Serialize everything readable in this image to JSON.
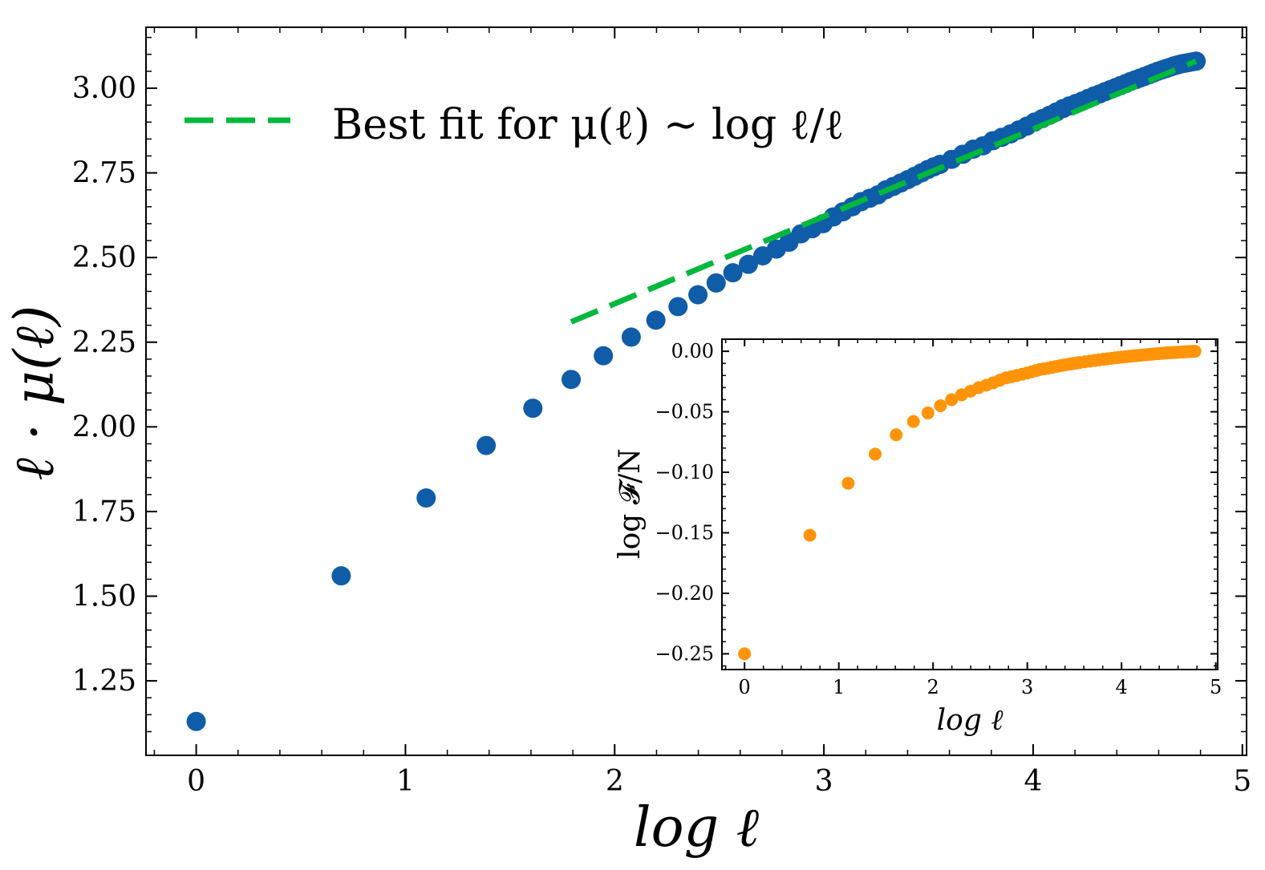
{
  "chart_data": [
    {
      "name": "main",
      "type": "scatter",
      "title": "",
      "xlabel": "log ℓ",
      "ylabel": "ℓ · μ(ℓ)",
      "xlim": [
        -0.24,
        5.02
      ],
      "ylim": [
        1.03,
        3.18
      ],
      "xticks": [
        0,
        1,
        2,
        3,
        4,
        5
      ],
      "xtick_labels": [
        "0",
        "1",
        "2",
        "3",
        "4",
        "5"
      ],
      "yticks": [
        1.25,
        1.5,
        1.75,
        2.0,
        2.25,
        2.5,
        2.75,
        3.0
      ],
      "ytick_labels": [
        "1.25",
        "1.50",
        "1.75",
        "2.00",
        "2.25",
        "2.50",
        "2.75",
        "3.00"
      ],
      "grid": false,
      "legend": {
        "position": "top-left",
        "entries": [
          "Best fit for μ(ℓ) ∼ log ℓ/ℓ"
        ]
      },
      "series": [
        {
          "name": "data",
          "color": "#0f5ca8",
          "x": [
            0,
            0.693,
            1.099,
            1.386,
            1.609,
            1.792,
            1.946,
            2.079,
            2.197,
            2.303,
            2.398,
            2.485,
            2.565,
            2.639,
            2.708,
            2.773,
            2.833,
            2.89,
            2.944,
            2.996,
            3.045,
            3.091,
            3.136,
            3.178,
            3.219,
            3.258,
            3.296,
            3.332,
            3.367,
            3.401,
            3.434,
            3.466,
            3.497,
            3.526,
            3.555,
            3.611,
            3.664,
            3.714,
            3.761,
            3.807,
            3.85,
            3.892,
            3.932,
            3.97,
            4.007,
            4.043,
            4.078,
            4.111,
            4.143,
            4.174,
            4.205,
            4.234,
            4.263,
            4.29,
            4.317,
            4.344,
            4.369,
            4.394,
            4.419,
            4.443,
            4.466,
            4.489,
            4.511,
            4.533,
            4.554,
            4.575,
            4.595,
            4.615,
            4.635,
            4.654,
            4.673,
            4.691,
            4.709,
            4.727,
            4.745,
            4.762,
            4.779
          ],
          "y": [
            1.13,
            1.56,
            1.79,
            1.945,
            2.055,
            2.14,
            2.21,
            2.265,
            2.315,
            2.355,
            2.39,
            2.425,
            2.455,
            2.48,
            2.505,
            2.525,
            2.545,
            2.57,
            2.585,
            2.6,
            2.62,
            2.635,
            2.65,
            2.665,
            2.675,
            2.685,
            2.7,
            2.71,
            2.72,
            2.73,
            2.74,
            2.75,
            2.76,
            2.768,
            2.775,
            2.79,
            2.805,
            2.82,
            2.83,
            2.845,
            2.855,
            2.865,
            2.877,
            2.888,
            2.9,
            2.91,
            2.92,
            2.93,
            2.94,
            2.948,
            2.955,
            2.962,
            2.97,
            2.977,
            2.983,
            2.99,
            2.996,
            3.002,
            3.008,
            3.014,
            3.02,
            3.025,
            3.03,
            3.035,
            3.04,
            3.045,
            3.05,
            3.054,
            3.058,
            3.062,
            3.066,
            3.069,
            3.072,
            3.074,
            3.076,
            3.078,
            3.08
          ]
        },
        {
          "name": "Best fit for μ(ℓ) ∼ log ℓ/ℓ",
          "color": "#00b83c",
          "style": "dashed",
          "x": [
            1.792,
            4.779
          ],
          "y": [
            2.31,
            3.08
          ]
        }
      ]
    },
    {
      "name": "inset",
      "type": "scatter",
      "title": "",
      "xlabel": "log ℓ",
      "ylabel": "log 𝓕/N",
      "xlim": [
        -0.24,
        5.02
      ],
      "ylim": [
        -0.263,
        0.01
      ],
      "xticks": [
        0,
        1,
        2,
        3,
        4,
        5
      ],
      "xtick_labels": [
        "0",
        "1",
        "2",
        "3",
        "4",
        "5"
      ],
      "yticks": [
        0.0,
        -0.05,
        -0.1,
        -0.15,
        -0.2,
        -0.25
      ],
      "ytick_labels": [
        "0.00",
        "−0.05",
        "−0.10",
        "−0.15",
        "−0.20",
        "−0.25"
      ],
      "grid": false,
      "series": [
        {
          "name": "log F/N",
          "color": "#ff9408",
          "x": [
            0,
            0.693,
            1.099,
            1.386,
            1.609,
            1.792,
            1.946,
            2.079,
            2.197,
            2.303,
            2.398,
            2.485,
            2.565,
            2.639,
            2.708,
            2.773,
            2.833,
            2.89,
            2.944,
            2.996,
            3.045,
            3.091,
            3.136,
            3.178,
            3.219,
            3.258,
            3.296,
            3.332,
            3.367,
            3.401,
            3.434,
            3.466,
            3.497,
            3.526,
            3.555,
            3.611,
            3.664,
            3.714,
            3.761,
            3.807,
            3.85,
            3.892,
            3.932,
            3.97,
            4.007,
            4.043,
            4.078,
            4.111,
            4.143,
            4.174,
            4.205,
            4.234,
            4.263,
            4.29,
            4.317,
            4.344,
            4.369,
            4.394,
            4.419,
            4.443,
            4.466,
            4.489,
            4.511,
            4.533,
            4.554,
            4.575,
            4.595,
            4.615,
            4.635,
            4.654,
            4.673,
            4.691,
            4.709,
            4.727,
            4.745,
            4.762,
            4.779
          ],
          "y": [
            -0.25,
            -0.152,
            -0.109,
            -0.085,
            -0.069,
            -0.058,
            -0.051,
            -0.045,
            -0.04,
            -0.036,
            -0.033,
            -0.03,
            -0.028,
            -0.026,
            -0.024,
            -0.022,
            -0.021,
            -0.02,
            -0.019,
            -0.018,
            -0.017,
            -0.016,
            -0.015,
            -0.0145,
            -0.014,
            -0.0133,
            -0.0127,
            -0.0122,
            -0.0117,
            -0.0112,
            -0.0108,
            -0.0104,
            -0.01,
            -0.0096,
            -0.0093,
            -0.0087,
            -0.0081,
            -0.0076,
            -0.0071,
            -0.0066,
            -0.0062,
            -0.0058,
            -0.0054,
            -0.0051,
            -0.0048,
            -0.0045,
            -0.0042,
            -0.0039,
            -0.0037,
            -0.0034,
            -0.0032,
            -0.003,
            -0.0028,
            -0.0026,
            -0.0024,
            -0.0022,
            -0.002,
            -0.0019,
            -0.0017,
            -0.0016,
            -0.0014,
            -0.0013,
            -0.0012,
            -0.0011,
            -0.001,
            -0.0009,
            -0.0008,
            -0.0007,
            -0.0006,
            -0.0005,
            -0.0004,
            -0.0003,
            -0.0002,
            -0.00015,
            -0.0001,
            -5e-05,
            0
          ]
        }
      ]
    }
  ]
}
